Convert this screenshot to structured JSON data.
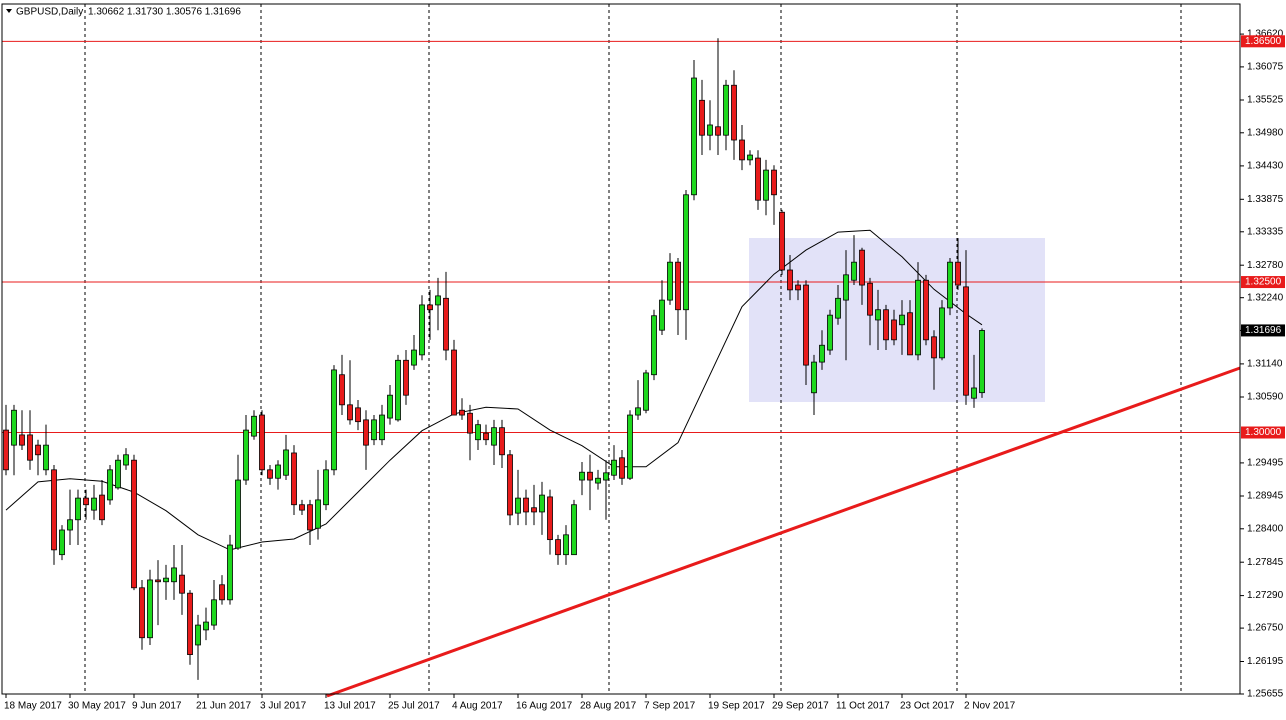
{
  "chart_data": {
    "type": "candlestick",
    "header": {
      "symbol": "GBPUSD,Daily",
      "quote": "1.30662 1.31730 1.30576 1.31696"
    },
    "categories": [
      "18 May 2017",
      null,
      null,
      null,
      null,
      null,
      null,
      null,
      "30 May 2017",
      null,
      null,
      null,
      null,
      null,
      null,
      null,
      "9 Jun 2017",
      null,
      null,
      null,
      null,
      null,
      null,
      null,
      "21 Jun 2017",
      null,
      null,
      null,
      null,
      null,
      null,
      null,
      "3 Jul 2017",
      null,
      null,
      null,
      null,
      null,
      null,
      null,
      "13 Jul 2017",
      null,
      null,
      null,
      null,
      null,
      null,
      null,
      "25 Jul 2017",
      null,
      null,
      null,
      null,
      null,
      null,
      null,
      "4 Aug 2017",
      null,
      null,
      null,
      null,
      null,
      null,
      null,
      "16 Aug 2017",
      null,
      null,
      null,
      null,
      null,
      null,
      null,
      "28 Aug 2017",
      null,
      null,
      null,
      null,
      null,
      null,
      null,
      "7 Sep 2017",
      null,
      null,
      null,
      null,
      null,
      null,
      null,
      "19 Sep 2017",
      null,
      null,
      null,
      null,
      null,
      null,
      null,
      "29 Sep 2017",
      null,
      null,
      null,
      null,
      null,
      null,
      null,
      "11 Oct 2017",
      null,
      null,
      null,
      null,
      null,
      null,
      null,
      "23 Oct 2017",
      null,
      null,
      null,
      null,
      null,
      null,
      null,
      "2 Nov 2017",
      null,
      null
    ],
    "open": [
      1.3004,
      1.2979,
      1.2996,
      1.2996,
      1.2979,
      1.2938,
      1.2938,
      1.2797,
      1.2838,
      1.2855,
      1.2891,
      1.2871,
      1.2896,
      1.2888,
      1.2908,
      1.2946,
      1.2954,
      1.2742,
      1.2659,
      1.2755,
      1.2752,
      1.2752,
      1.2763,
      1.2733,
      1.2647,
      1.2672,
      1.268,
      1.2747,
      1.2722,
      1.2808,
      1.2921,
      1.2994,
      1.3029,
      1.2938,
      1.2924,
      1.2929,
      1.2966,
      1.288,
      1.288,
      1.2841,
      1.288,
      1.2938,
      1.3096,
      1.3046,
      1.3041,
      1.3021,
      1.2988,
      1.2988,
      1.3024,
      1.3021,
      1.312,
      1.3112,
      1.3129,
      1.3212,
      1.3212,
      1.3223,
      1.3137,
      1.3037,
      1.3032,
      1.2988,
      1.2999,
      1.2979,
      1.3008,
      1.2963,
      1.2866,
      1.2891,
      1.2875,
      1.2868,
      1.2893,
      1.2822,
      1.2797,
      1.2797,
      1.2921,
      1.2934,
      1.2916,
      1.2921,
      1.2929,
      1.2958,
      1.2924,
      1.3029,
      1.3037,
      1.3096,
      1.317,
      1.322,
      1.3283,
      1.3204,
      1.3395,
      1.3552,
      1.3494,
      1.3508,
      1.3494,
      1.3577,
      1.3486,
      1.3453,
      1.3456,
      1.3386,
      1.3436,
      1.3366,
      1.327,
      1.3245,
      1.3245,
      1.3066,
      1.3117,
      1.3137,
      1.319,
      1.322,
      1.3253,
      1.3303,
      1.3248,
      1.3187,
      1.3204,
      1.3187,
      1.3179,
      1.3199,
      1.3129,
      1.3253,
      1.3159,
      1.3124,
      1.3207,
      1.3283,
      1.3242,
      1.3057,
      1.30662
    ],
    "high": [
      1.3046,
      1.3046,
      1.3037,
      1.3037,
      1.2988,
      1.3013,
      1.2946,
      1.2846,
      1.2905,
      1.2905,
      1.2905,
      1.2913,
      1.2921,
      1.2946,
      1.2963,
      1.2974,
      1.2963,
      1.2755,
      1.2772,
      1.2788,
      1.278,
      1.2813,
      1.2813,
      1.2738,
      1.2697,
      1.2709,
      1.2755,
      1.2763,
      1.283,
      1.2963,
      1.3029,
      1.3037,
      1.3037,
      1.2946,
      1.2954,
      1.2996,
      1.2979,
      1.2888,
      1.2888,
      1.2938,
      1.2954,
      1.3112,
      1.3129,
      1.312,
      1.3054,
      1.3037,
      1.3029,
      1.3046,
      1.3079,
      1.3129,
      1.3137,
      1.3162,
      1.3228,
      1.3237,
      1.3257,
      1.3267,
      1.3154,
      1.3057,
      1.3046,
      1.3021,
      1.3013,
      1.3021,
      1.3021,
      1.2971,
      1.2938,
      1.2905,
      1.2913,
      1.2918,
      1.2905,
      1.283,
      1.2846,
      1.2888,
      1.2951,
      1.2963,
      1.2938,
      1.2954,
      1.2979,
      1.2971,
      1.3037,
      1.3087,
      1.3104,
      1.3204,
      1.3253,
      1.3298,
      1.329,
      1.3403,
      1.3619,
      1.3586,
      1.3552,
      1.3655,
      1.3586,
      1.3602,
      1.3511,
      1.3469,
      1.3469,
      1.3453,
      1.3444,
      1.337,
      1.3295,
      1.3253,
      1.3253,
      1.3129,
      1.317,
      1.3204,
      1.3245,
      1.3303,
      1.3328,
      1.3307,
      1.3257,
      1.3237,
      1.3212,
      1.3204,
      1.322,
      1.322,
      1.3283,
      1.3262,
      1.317,
      1.322,
      1.329,
      1.3323,
      1.3303,
      1.3129,
      1.3173
    ],
    "low": [
      1.2929,
      1.2929,
      1.2971,
      1.2938,
      1.2929,
      1.2929,
      1.278,
      1.2788,
      1.2813,
      1.2813,
      1.2855,
      1.2855,
      1.2846,
      1.288,
      1.2905,
      1.2938,
      1.2738,
      1.2639,
      1.2647,
      1.268,
      1.2722,
      1.2722,
      1.2697,
      1.2614,
      1.2589,
      1.2655,
      1.2672,
      1.2714,
      1.2714,
      1.2805,
      1.2913,
      1.2988,
      1.2929,
      1.2913,
      1.2905,
      1.2921,
      1.2863,
      1.2863,
      1.2813,
      1.2822,
      1.2871,
      1.2929,
      1.3029,
      1.3013,
      1.3004,
      1.2938,
      1.2979,
      1.2979,
      1.3013,
      1.3018,
      1.3046,
      1.3104,
      1.312,
      1.3154,
      1.317,
      1.312,
      1.3029,
      1.3021,
      1.2954,
      1.2971,
      1.2979,
      1.2946,
      1.2941,
      1.2846,
      1.2846,
      1.2846,
      1.2846,
      1.283,
      1.2797,
      1.278,
      1.278,
      1.2797,
      1.2896,
      1.2871,
      1.2905,
      1.2855,
      1.2921,
      1.2913,
      1.2921,
      1.3021,
      1.3032,
      1.3087,
      1.3162,
      1.3212,
      1.3162,
      1.3154,
      1.3386,
      1.3461,
      1.3469,
      1.3461,
      1.3469,
      1.3453,
      1.3436,
      1.3444,
      1.337,
      1.3361,
      1.3345,
      1.3262,
      1.322,
      1.322,
      1.3079,
      1.3029,
      1.3104,
      1.3129,
      1.3179,
      1.312,
      1.3245,
      1.3212,
      1.3145,
      1.3137,
      1.3137,
      1.3145,
      1.3129,
      1.3129,
      1.312,
      1.3145,
      1.3071,
      1.312,
      1.3195,
      1.3237,
      1.3046,
      1.3041,
      1.30576
    ],
    "close": [
      1.2938,
      1.3037,
      1.2979,
      1.2954,
      1.2963,
      1.2979,
      1.2805,
      1.2838,
      1.2855,
      1.2891,
      1.288,
      1.2891,
      1.2855,
      1.2938,
      1.2954,
      1.2963,
      1.2742,
      1.2659,
      1.2755,
      1.2752,
      1.2758,
      1.2775,
      1.2733,
      1.2631,
      1.268,
      1.2685,
      1.2722,
      1.2722,
      1.2813,
      1.2921,
      1.3004,
      1.3027,
      1.2938,
      1.2924,
      1.2946,
      1.2971,
      1.288,
      1.2871,
      1.2838,
      1.2888,
      1.2938,
      1.3104,
      1.3046,
      1.3021,
      1.3018,
      1.2979,
      1.3021,
      1.3029,
      1.3062,
      1.312,
      1.3062,
      1.3137,
      1.3212,
      1.3204,
      1.3227,
      1.3137,
      1.3029,
      1.3029,
      1.2999,
      1.3013,
      1.2988,
      1.3008,
      1.2963,
      1.2863,
      1.2891,
      1.2868,
      1.2868,
      1.2896,
      1.2822,
      1.2797,
      1.283,
      1.288,
      1.2934,
      1.2921,
      1.2924,
      1.2933,
      1.2954,
      1.2924,
      1.3029,
      1.3041,
      1.3099,
      1.3194,
      1.322,
      1.3283,
      1.3204,
      1.3395,
      1.3589,
      1.3494,
      1.3511,
      1.3494,
      1.3577,
      1.3486,
      1.3453,
      1.3461,
      1.3386,
      1.3436,
      1.3395,
      1.327,
      1.3237,
      1.3237,
      1.3112,
      1.3117,
      1.3145,
      1.3195,
      1.3223,
      1.3262,
      1.3283,
      1.3245,
      1.3195,
      1.3204,
      1.3154,
      1.3154,
      1.3195,
      1.3129,
      1.3253,
      1.3154,
      1.3124,
      1.3207,
      1.3283,
      1.3245,
      1.3062,
      1.3074,
      1.31696
    ],
    "up_color": "#1ed81e",
    "down_color": "#e81b1b",
    "ma": {
      "color": "#000000",
      "x": [
        0,
        4,
        8,
        12,
        16,
        20,
        24,
        28,
        32,
        36,
        40,
        44,
        48,
        52,
        56,
        60,
        64,
        68,
        72,
        76,
        80,
        84,
        88,
        92,
        96,
        100,
        104,
        108,
        112,
        116,
        120,
        122
      ],
      "values": [
        1.2871,
        1.2918,
        1.2923,
        1.2919,
        1.2901,
        1.287,
        1.283,
        1.2805,
        1.2818,
        1.2823,
        1.2848,
        1.2901,
        1.2954,
        1.3003,
        1.3031,
        1.3042,
        1.3039,
        1.3004,
        1.2978,
        1.2943,
        1.2943,
        1.2983,
        1.3096,
        1.3209,
        1.3263,
        1.3303,
        1.3333,
        1.3336,
        1.3292,
        1.3238,
        1.3197,
        1.3179
      ]
    },
    "levels": [
      {
        "value": 1.365,
        "label": "1.36500"
      },
      {
        "value": 1.325,
        "label": "1.32500"
      },
      {
        "value": 1.3,
        "label": "1.30000"
      }
    ],
    "level_color": "#e81b1b",
    "last_price": {
      "value": 1.31696,
      "label": "1.31696"
    },
    "ylim": [
      1.25655,
      1.3712
    ],
    "yticks": [
      {
        "value": 1.3662,
        "label": "1.36620"
      },
      {
        "value": 1.36075,
        "label": "1.36075"
      },
      {
        "value": 1.35525,
        "label": "1.35525"
      },
      {
        "value": 1.3498,
        "label": "1.34980"
      },
      {
        "value": 1.3443,
        "label": "1.34430"
      },
      {
        "value": 1.33875,
        "label": "1.33875"
      },
      {
        "value": 1.33335,
        "label": "1.33335"
      },
      {
        "value": 1.3278,
        "label": "1.32780"
      },
      {
        "value": 1.3224,
        "label": "1.32240"
      },
      {
        "value": 1.3114,
        "label": "1.31140"
      },
      {
        "value": 1.3059,
        "label": "1.30590"
      },
      {
        "value": 1.29495,
        "label": "1.29495"
      },
      {
        "value": 1.28945,
        "label": "1.28945"
      },
      {
        "value": 1.284,
        "label": "1.28400"
      },
      {
        "value": 1.27845,
        "label": "1.27845"
      },
      {
        "value": 1.2729,
        "label": "1.27290"
      },
      {
        "value": 1.2675,
        "label": "1.26750"
      },
      {
        "value": 1.26195,
        "label": "1.26195"
      },
      {
        "value": 1.25655,
        "label": "1.25655"
      }
    ]
  }
}
